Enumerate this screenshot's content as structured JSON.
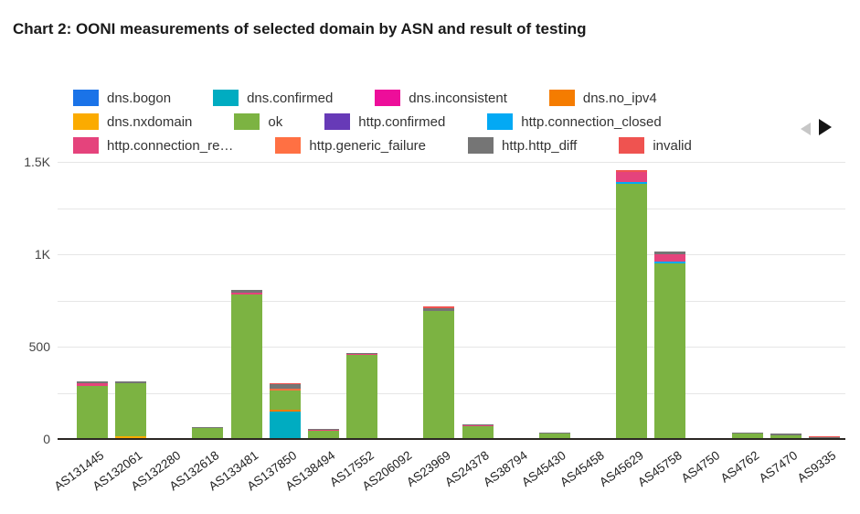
{
  "title": "Chart 2: OONI measurements of selected domain by ASN and result of testing",
  "legend": {
    "items_per_row": 4,
    "prev_icon": "left-triangle",
    "next_icon": "right-triangle",
    "prev_color": "#c7c7c7",
    "next_color": "#141414"
  },
  "chart_data": {
    "type": "bar",
    "stacked": true,
    "title": "Chart 2: OONI measurements of selected domain by ASN and result of testing",
    "xlabel": "",
    "ylabel": "",
    "ylim": [
      0,
      1500
    ],
    "grid": true,
    "legend_position": "top",
    "yticks": [
      {
        "value": 0,
        "label": "0"
      },
      {
        "value": 500,
        "label": "500"
      },
      {
        "value": 1000,
        "label": "1K"
      },
      {
        "value": 1500,
        "label": "1.5K"
      }
    ],
    "gridline_step": 250,
    "categories": [
      "AS131445",
      "AS132061",
      "AS132280",
      "AS132618",
      "AS133481",
      "AS137850",
      "AS138494",
      "AS17552",
      "AS206092",
      "AS23969",
      "AS24378",
      "AS38794",
      "AS45430",
      "AS45458",
      "AS45629",
      "AS45758",
      "AS4750",
      "AS4762",
      "AS7470",
      "AS9335"
    ],
    "series": [
      {
        "name": "dns.bogon",
        "color": "#1a73e8",
        "values": [
          0,
          0,
          0,
          0,
          0,
          0,
          0,
          0,
          0,
          0,
          0,
          0,
          0,
          0,
          0,
          0,
          0,
          0,
          0,
          0
        ]
      },
      {
        "name": "dns.confirmed",
        "color": "#00acc1",
        "values": [
          0,
          0,
          0,
          0,
          0,
          150,
          0,
          0,
          0,
          0,
          0,
          0,
          0,
          0,
          0,
          0,
          0,
          0,
          0,
          0
        ]
      },
      {
        "name": "dns.inconsistent",
        "color": "#ed0e9a",
        "values": [
          0,
          0,
          0,
          0,
          0,
          0,
          0,
          0,
          0,
          0,
          0,
          0,
          0,
          0,
          0,
          0,
          0,
          0,
          0,
          0
        ]
      },
      {
        "name": "dns.no_ipv4",
        "color": "#f57c00",
        "values": [
          0,
          0,
          0,
          0,
          0,
          10,
          0,
          0,
          0,
          0,
          0,
          0,
          0,
          0,
          0,
          0,
          0,
          0,
          0,
          0
        ]
      },
      {
        "name": "dns.nxdomain",
        "color": "#fbab00",
        "values": [
          0,
          14,
          0,
          0,
          0,
          0,
          0,
          0,
          0,
          0,
          0,
          0,
          0,
          0,
          0,
          0,
          0,
          0,
          0,
          0
        ]
      },
      {
        "name": "ok",
        "color": "#7cb342",
        "values": [
          285,
          288,
          2,
          60,
          780,
          100,
          45,
          455,
          2,
          695,
          70,
          2,
          30,
          2,
          1380,
          950,
          2,
          30,
          20,
          5
        ]
      },
      {
        "name": "http.confirmed",
        "color": "#673ab7",
        "values": [
          0,
          0,
          0,
          0,
          0,
          0,
          0,
          0,
          0,
          0,
          0,
          0,
          0,
          0,
          0,
          0,
          0,
          0,
          0,
          0
        ]
      },
      {
        "name": "http.connection_closed",
        "color": "#03a9f4",
        "values": [
          0,
          0,
          0,
          0,
          0,
          0,
          0,
          0,
          0,
          0,
          0,
          0,
          0,
          0,
          10,
          10,
          0,
          0,
          0,
          0
        ]
      },
      {
        "name": "http.connection_re…",
        "color": "#e5437c",
        "values": [
          18,
          0,
          0,
          0,
          12,
          0,
          4,
          5,
          0,
          0,
          4,
          0,
          0,
          0,
          55,
          38,
          0,
          0,
          0,
          0
        ]
      },
      {
        "name": "http.generic_failure",
        "color": "#ff7043",
        "values": [
          0,
          0,
          0,
          0,
          0,
          12,
          0,
          0,
          0,
          0,
          0,
          0,
          0,
          0,
          0,
          0,
          0,
          0,
          0,
          0
        ]
      },
      {
        "name": "http.http_diff",
        "color": "#757575",
        "values": [
          7,
          8,
          0,
          5,
          13,
          25,
          4,
          6,
          0,
          15,
          4,
          0,
          5,
          0,
          0,
          15,
          0,
          5,
          8,
          5
        ]
      },
      {
        "name": "invalid",
        "color": "#ef5350",
        "values": [
          0,
          0,
          0,
          0,
          0,
          6,
          0,
          0,
          0,
          6,
          0,
          0,
          0,
          0,
          8,
          0,
          0,
          0,
          0,
          4
        ]
      }
    ]
  }
}
